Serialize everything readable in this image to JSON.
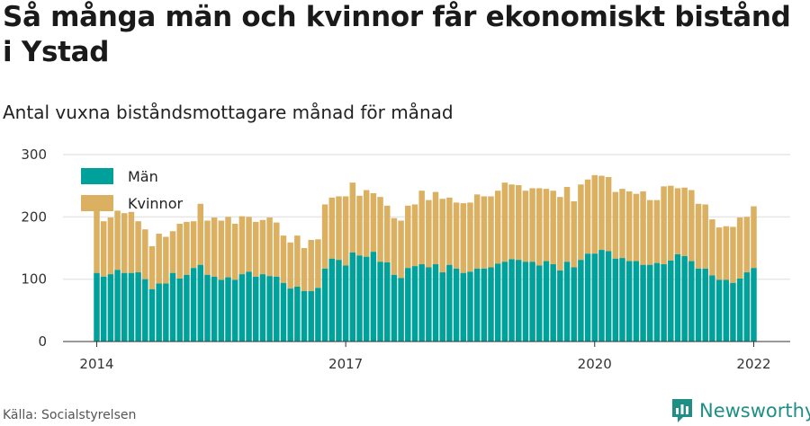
{
  "title": "Så många män och kvinnor får ekonomiskt bistånd i Ystad",
  "subtitle": "Antal vuxna biståndsmottagare månad för månad",
  "source": "Källa: Socialstyrelsen",
  "brand": {
    "name": "Newsworthy",
    "icon": "bar-chart-logo-icon"
  },
  "colors": {
    "men": "#00a19a",
    "women": "#dbb061",
    "grid": "#e6e6e6",
    "axis": "#333333"
  },
  "chart_data": {
    "type": "bar",
    "stacked": true,
    "x_ticks": [
      "2014",
      "2017",
      "2020",
      "2022"
    ],
    "y_ticks": [
      0,
      100,
      200,
      300
    ],
    "ylim": [
      0,
      300
    ],
    "grid": "horizontal",
    "legend_position": "top-left",
    "period": {
      "start": "2014-01",
      "end": "2022-01",
      "frequency": "monthly"
    },
    "series": [
      {
        "name": "Män",
        "color": "#00a19a",
        "values": [
          110,
          104,
          108,
          115,
          110,
          110,
          111,
          100,
          84,
          93,
          93,
          110,
          101,
          107,
          118,
          123,
          107,
          104,
          99,
          103,
          99,
          108,
          112,
          104,
          108,
          105,
          104,
          94,
          85,
          88,
          81,
          81,
          86,
          117,
          133,
          131,
          122,
          143,
          138,
          136,
          144,
          128,
          127,
          107,
          102,
          118,
          121,
          124,
          119,
          124,
          111,
          123,
          117,
          110,
          112,
          117,
          117,
          119,
          125,
          128,
          132,
          131,
          128,
          128,
          122,
          129,
          124,
          114,
          128,
          119,
          131,
          141,
          141,
          147,
          145,
          133,
          134,
          129,
          129,
          123,
          123,
          126,
          124,
          130,
          140,
          137,
          129,
          117,
          117,
          106,
          99,
          99,
          94,
          101,
          111,
          118
        ]
      },
      {
        "name": "Kvinnor",
        "color": "#dbb061",
        "values": [
          100,
          89,
          91,
          95,
          96,
          98,
          82,
          80,
          69,
          80,
          75,
          67,
          88,
          85,
          75,
          98,
          87,
          95,
          95,
          97,
          90,
          93,
          88,
          88,
          87,
          94,
          87,
          76,
          74,
          82,
          69,
          82,
          78,
          103,
          98,
          102,
          111,
          112,
          96,
          107,
          94,
          104,
          91,
          91,
          92,
          100,
          99,
          118,
          108,
          116,
          118,
          108,
          106,
          112,
          111,
          119,
          116,
          114,
          117,
          127,
          120,
          120,
          114,
          118,
          124,
          116,
          118,
          118,
          120,
          106,
          121,
          119,
          126,
          119,
          119,
          107,
          111,
          112,
          108,
          118,
          104,
          101,
          125,
          120,
          106,
          110,
          114,
          104,
          103,
          90,
          84,
          86,
          90,
          98,
          89,
          99
        ]
      }
    ]
  }
}
